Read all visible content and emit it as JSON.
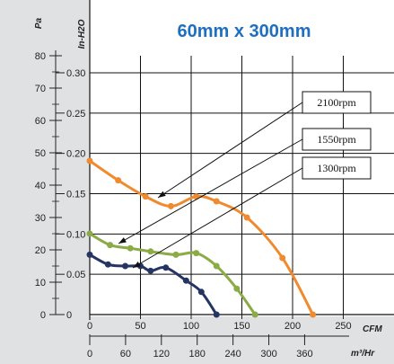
{
  "chart_data": {
    "type": "line",
    "title": "60mm x 300mm",
    "ylabel_left": "Pa",
    "ylabel_right": "In-H2O",
    "xlabel_top": "CFM",
    "xlabel_bottom": "m³/Hr",
    "ylim": [
      0,
      80
    ],
    "xlim": [
      0,
      250
    ],
    "pa_ticks": [
      "0",
      "10",
      "20",
      "30",
      "40",
      "50",
      "60",
      "70",
      "80"
    ],
    "inh2o_ticks": [
      "0",
      "0.05",
      "0.10",
      "0.15",
      "0.20",
      "0.25",
      "0.30"
    ],
    "cfm_ticks": [
      "0",
      "50",
      "100",
      "150",
      "200",
      "250"
    ],
    "m3hr_ticks": [
      "0",
      "60",
      "120",
      "180",
      "240",
      "300",
      "360"
    ],
    "grid": true,
    "series": [
      {
        "name": "2100rpm",
        "color": "#f08a2e",
        "points": [
          [
            0,
            47.5
          ],
          [
            28,
            41.5
          ],
          [
            55,
            36.5
          ],
          [
            80,
            33.5
          ],
          [
            105,
            36.5
          ],
          [
            125,
            35
          ],
          [
            155,
            30
          ],
          [
            190,
            17.5
          ],
          [
            220,
            0
          ]
        ]
      },
      {
        "name": "1550rpm",
        "color": "#8aab45",
        "points": [
          [
            0,
            25
          ],
          [
            20,
            21.5
          ],
          [
            40,
            20.5
          ],
          [
            60,
            19.5
          ],
          [
            85,
            18.5
          ],
          [
            105,
            19
          ],
          [
            125,
            15
          ],
          [
            145,
            8
          ],
          [
            163,
            0
          ]
        ]
      },
      {
        "name": "1300rpm",
        "color": "#263463",
        "points": [
          [
            0,
            18.5
          ],
          [
            18,
            15.5
          ],
          [
            35,
            15
          ],
          [
            50,
            15
          ],
          [
            60,
            13.5
          ],
          [
            75,
            14.5
          ],
          [
            95,
            10.5
          ],
          [
            110,
            7
          ],
          [
            125,
            0
          ]
        ]
      }
    ]
  }
}
